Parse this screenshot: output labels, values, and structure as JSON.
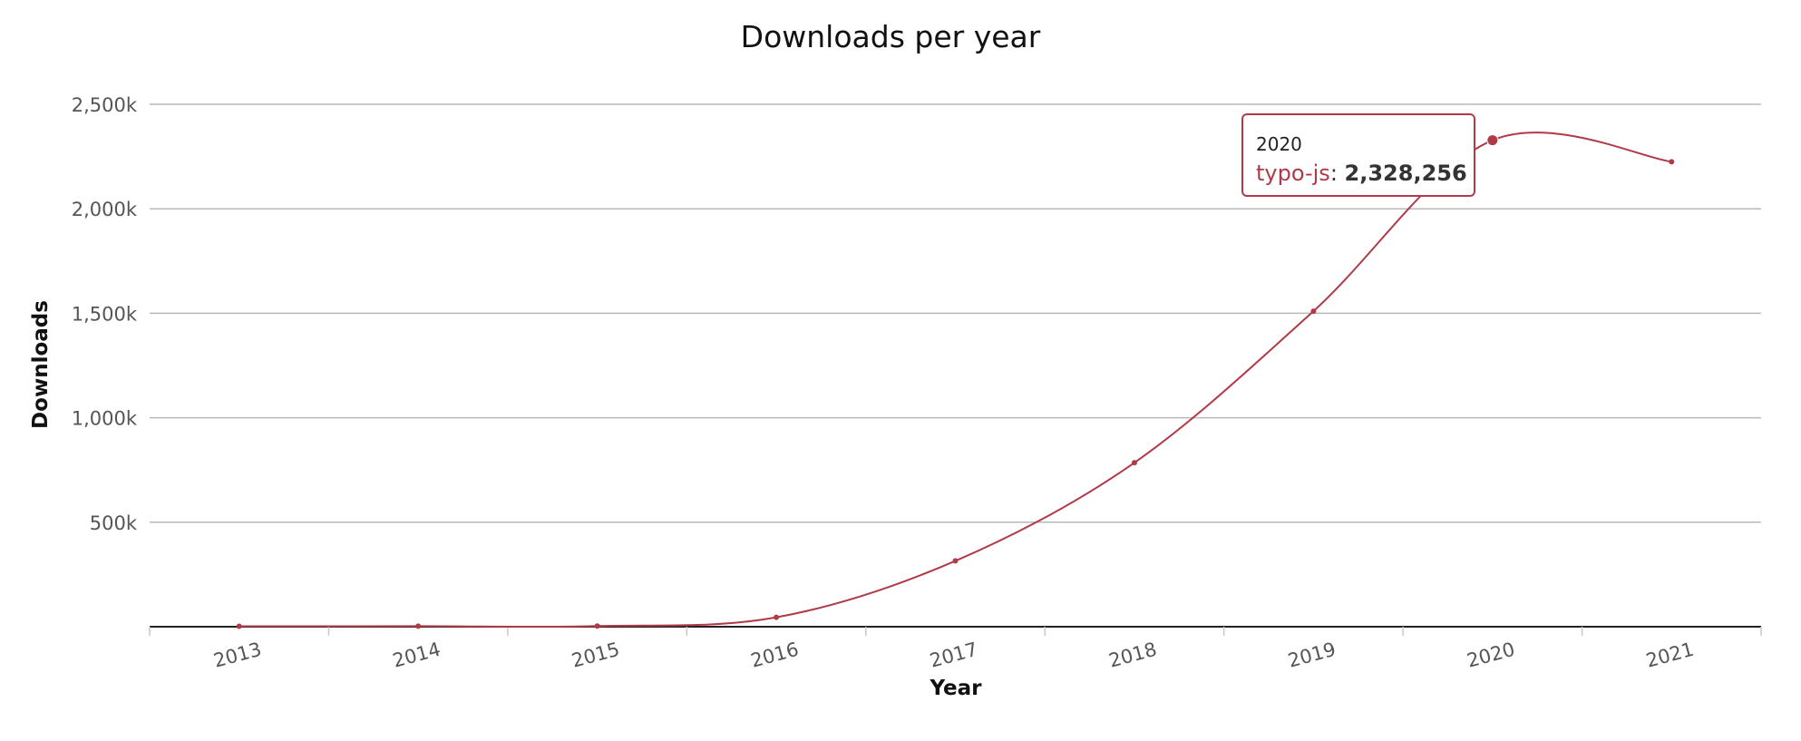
{
  "chart_data": {
    "type": "line",
    "title": "Downloads per year",
    "xlabel": "Year",
    "ylabel": "Downloads",
    "categories": [
      "2013",
      "2014",
      "2015",
      "2016",
      "2017",
      "2018",
      "2019",
      "2020",
      "2021"
    ],
    "series": [
      {
        "name": "typo-js",
        "color": "#b03a48",
        "values": [
          2000,
          2500,
          3000,
          45000,
          315000,
          785000,
          1510000,
          2328256,
          2225000
        ]
      }
    ],
    "ylim": [
      0,
      2500000
    ],
    "yticks": [
      0,
      500000,
      1000000,
      1500000,
      2000000,
      2500000
    ],
    "ytick_labels": [
      "",
      "500k",
      "1,000k",
      "1,500k",
      "2,000k",
      "2,500k"
    ],
    "grid": "horizontal",
    "legend": "none",
    "tooltip": {
      "category": "2020",
      "series_name": "typo-js",
      "separator": ": ",
      "value_text": "2,328,256"
    }
  }
}
